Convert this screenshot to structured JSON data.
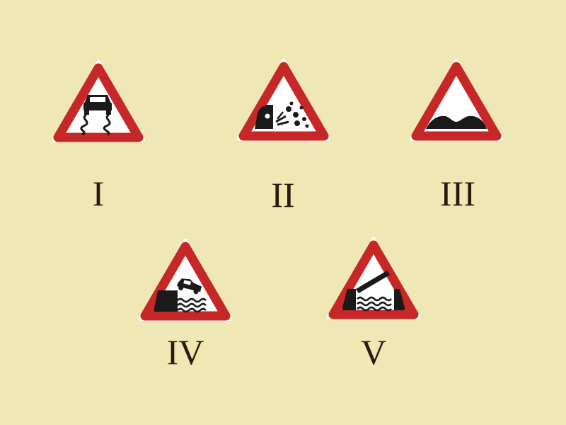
{
  "signs": [
    {
      "label": "I",
      "icon": "slippery-road-icon"
    },
    {
      "label": "II",
      "icon": "loose-gravel-icon"
    },
    {
      "label": "III",
      "icon": "uneven-road-icon"
    },
    {
      "label": "IV",
      "icon": "quayside-riverbank-icon"
    },
    {
      "label": "V",
      "icon": "opening-bridge-icon"
    }
  ],
  "colors": {
    "background": "#f0e8b4",
    "sign_border": "#c62828",
    "sign_fill": "#ffffff",
    "symbol": "#1a1a1a"
  }
}
